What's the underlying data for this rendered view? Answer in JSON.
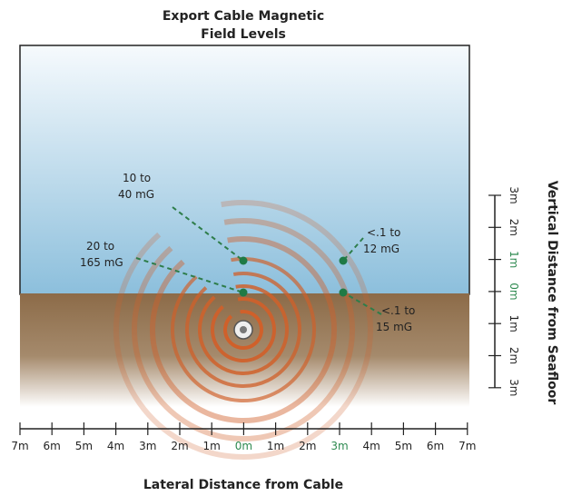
{
  "title": [
    "Export Cable Magnetic",
    "Field Levels"
  ],
  "annotations": [
    {
      "lines": [
        "10 to",
        "40 mG"
      ]
    },
    {
      "lines": [
        "20 to",
        "165 mG"
      ]
    },
    {
      "lines": [
        "<.1 to",
        "12 mG"
      ]
    },
    {
      "lines": [
        "<.1 to",
        "15 mG"
      ]
    }
  ],
  "x_axis": {
    "title": "Lateral Distance from Cable",
    "labels": [
      "7m",
      "6m",
      "5m",
      "4m",
      "3m",
      "2m",
      "1m",
      "0m",
      "1m",
      "2m",
      "3m",
      "4m",
      "5m",
      "6m",
      "7m"
    ]
  },
  "y_axis": {
    "title": "Vertical Distance from Seafloor",
    "labels": [
      "3m",
      "2m",
      "1m",
      "0m",
      "1m",
      "2m",
      "3m"
    ]
  }
}
